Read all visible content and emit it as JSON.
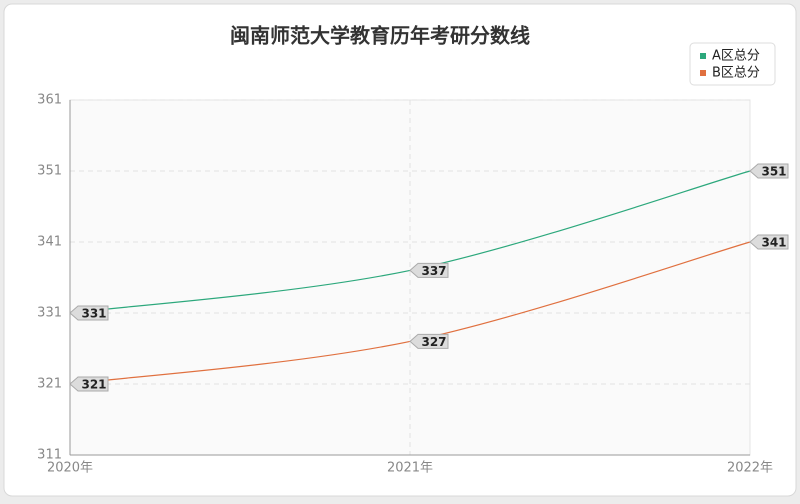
{
  "chart_data": {
    "type": "line",
    "title": "闽南师范大学教育历年考研分数线",
    "categories": [
      "2020年",
      "2021年",
      "2022年"
    ],
    "series": [
      {
        "name": "A区总分",
        "color": "#2ca87c",
        "values": [
          331,
          337,
          351
        ]
      },
      {
        "name": "B区总分",
        "color": "#e0703f",
        "values": [
          321,
          327,
          341
        ]
      }
    ],
    "ylim": [
      311,
      361
    ],
    "yticks": [
      311,
      321,
      331,
      341,
      351,
      361
    ],
    "grid": true,
    "legend": "top-right"
  }
}
